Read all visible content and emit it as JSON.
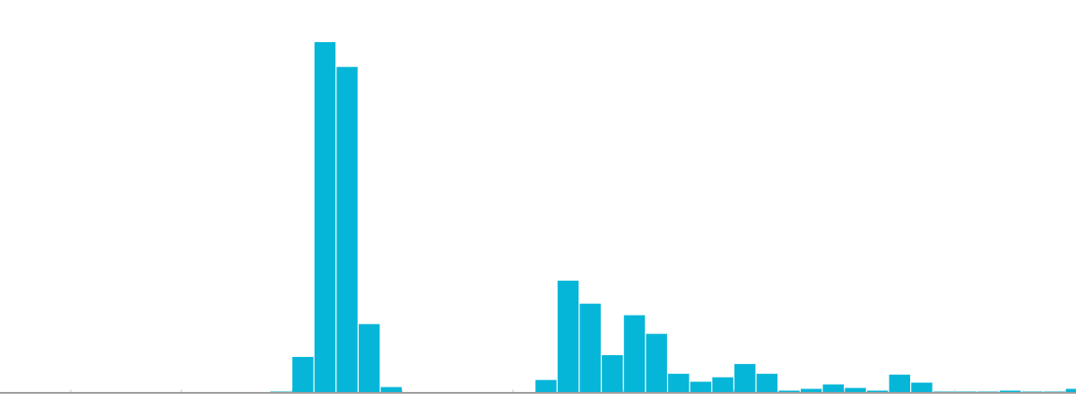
{
  "chart_data": {
    "type": "bar",
    "title": "",
    "xlabel": "",
    "ylabel": "",
    "grid": false,
    "ylim": [
      0,
      400
    ],
    "bar_color": "#06b6d8",
    "axis_color": "#9e9e9e",
    "tick_color": "#c8c8c8",
    "x_start": 0,
    "values": [
      0,
      0,
      0,
      0,
      0,
      0,
      0,
      0,
      0,
      0,
      0,
      0,
      1,
      40,
      395,
      367,
      77,
      6,
      0,
      0,
      0,
      0,
      0,
      0,
      14,
      126,
      100,
      42,
      87,
      66,
      21,
      12,
      17,
      32,
      21,
      2,
      4,
      9,
      5,
      2,
      20,
      11,
      1,
      1,
      1,
      2,
      1,
      1,
      4
    ]
  }
}
